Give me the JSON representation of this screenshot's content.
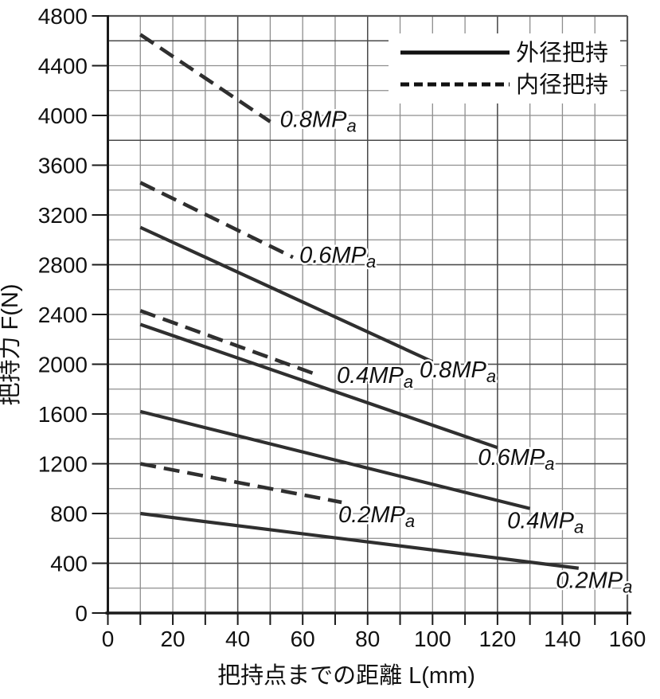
{
  "chart_data": {
    "type": "line",
    "title": "",
    "xlabel": "把持点までの距離 L(mm)",
    "ylabel": "把持力 F(N)",
    "xlim": [
      0,
      160
    ],
    "ylim": [
      0,
      4800
    ],
    "x_tick_interval": 10,
    "x_label_interval": 20,
    "y_tick_interval": 200,
    "y_label_interval": 400,
    "grid": "on",
    "legend_position": "top-right",
    "x_tick_labels": [
      "0",
      "20",
      "40",
      "60",
      "80",
      "100",
      "120",
      "140",
      "160"
    ],
    "y_tick_labels": [
      "0",
      "400",
      "800",
      "1200",
      "1600",
      "2000",
      "2400",
      "2800",
      "3200",
      "3600",
      "4000",
      "4400",
      "4800"
    ],
    "legend": [
      {
        "label": "外径把持",
        "style": "solid"
      },
      {
        "label": "内径把持",
        "style": "dashed"
      }
    ],
    "series": [
      {
        "group": "外径把持",
        "style": "solid",
        "label": "0.2MPa",
        "points": [
          [
            10,
            800
          ],
          [
            145,
            360
          ]
        ],
        "label_pos": {
          "x": 138,
          "y": 265
        }
      },
      {
        "group": "外径把持",
        "style": "solid",
        "label": "0.4MPa",
        "points": [
          [
            10,
            1620
          ],
          [
            130,
            840
          ]
        ],
        "label_pos": {
          "x": 123,
          "y": 745
        }
      },
      {
        "group": "外径把持",
        "style": "solid",
        "label": "0.6MPa",
        "points": [
          [
            10,
            2320
          ],
          [
            120,
            1330
          ]
        ],
        "label_pos": {
          "x": 114,
          "y": 1255
        }
      },
      {
        "group": "外径把持",
        "style": "solid",
        "label": "0.8MPa",
        "points": [
          [
            10,
            3100
          ],
          [
            100,
            2020
          ]
        ],
        "label_pos": {
          "x": 96,
          "y": 1960
        }
      },
      {
        "group": "内径把持",
        "style": "dashed",
        "label": "0.2MPa",
        "points": [
          [
            10,
            1200
          ],
          [
            72,
            890
          ]
        ],
        "label_pos": {
          "x": 71,
          "y": 795
        }
      },
      {
        "group": "内径把持",
        "style": "dashed",
        "label": "0.4MPa",
        "points": [
          [
            10,
            2430
          ],
          [
            65,
            1910
          ]
        ],
        "label_pos": {
          "x": 70.5,
          "y": 1915
        }
      },
      {
        "group": "内径把持",
        "style": "dashed",
        "label": "0.6MPa",
        "points": [
          [
            10,
            3460
          ],
          [
            57,
            2860
          ]
        ],
        "label_pos": {
          "x": 59,
          "y": 2880
        }
      },
      {
        "group": "内径把持",
        "style": "dashed",
        "label": "0.8MPa",
        "points": [
          [
            10,
            4650
          ],
          [
            50,
            3950
          ]
        ],
        "label_pos": {
          "x": 53,
          "y": 3970
        }
      }
    ],
    "emphasized_gridlines": {
      "horizontal_values": [
        400,
        1200,
        2000,
        2800,
        3800,
        4600
      ],
      "vertical_values": [
        40,
        80,
        120
      ]
    },
    "colors": {
      "line": "#2f2f2f",
      "grid": "#8e8e8e",
      "grid_emphasis": "#4a4a4a",
      "axis": "#1a1a1a",
      "text": "#111111",
      "background": "#ffffff"
    }
  }
}
